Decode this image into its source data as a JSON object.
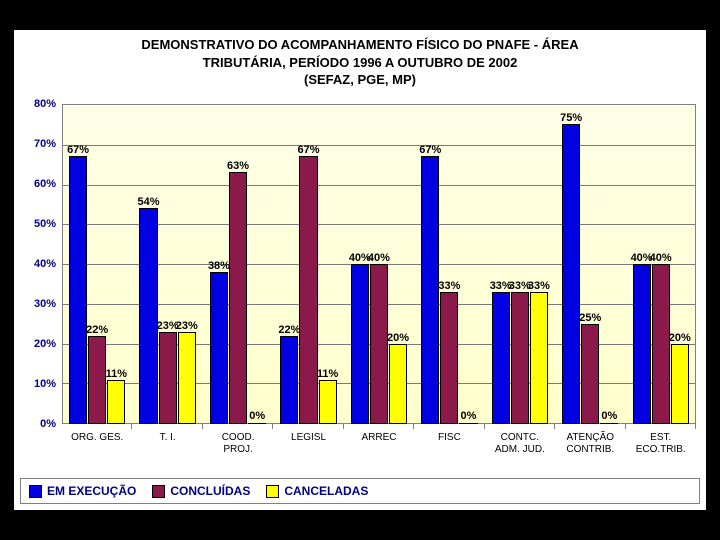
{
  "chart": {
    "type": "bar",
    "title_lines": [
      "DEMONSTRATIVO DO ACOMPANHAMENTO FÍSICO DO PNAFE - ÁREA",
      "TRIBUTÁRIA, PERÍODO 1996 A OUTUBRO DE 2002",
      "(SEFAZ, PGE, MP)"
    ],
    "title_fontsize": 13,
    "background_color": "#000000",
    "panel_color": "#ffffff",
    "plot_gradient_top": "#ffffe8",
    "plot_gradient_bottom": "#ffffcc",
    "grid_color": "#7a7a7a",
    "border_color": "#808080",
    "ylim": [
      0,
      80
    ],
    "ytick_step": 10,
    "ytick_labels": [
      "0%",
      "10%",
      "20%",
      "30%",
      "40%",
      "50%",
      "60%",
      "70%",
      "80%"
    ],
    "ytick_color": "#000080",
    "label_fontsize": 11,
    "categories": [
      "ORG. GES.",
      "T. I.",
      "COOD.\nPROJ.",
      "LEGISL",
      "ARREC",
      "FISC",
      "CONTC.\nADM. JUD.",
      "ATENÇÃO\nCONTRIB.",
      "EST.\nECO.TRIB."
    ],
    "series": [
      {
        "name": "EM EXECUÇÃO",
        "color": "#0000e0",
        "values": [
          67,
          54,
          38,
          22,
          40,
          67,
          33,
          75,
          40
        ]
      },
      {
        "name": "CONCLUÍDAS",
        "color": "#8b1a4b",
        "values": [
          22,
          23,
          63,
          67,
          40,
          33,
          33,
          25,
          40
        ]
      },
      {
        "name": "CANCELADAS",
        "color": "#ffff00",
        "values": [
          11,
          23,
          0,
          11,
          20,
          0,
          33,
          0,
          20
        ]
      }
    ],
    "value_suffix": "%",
    "bar_border_color": "#000000",
    "legend_border_color": "#808080",
    "legend_text_color": "#000080"
  }
}
